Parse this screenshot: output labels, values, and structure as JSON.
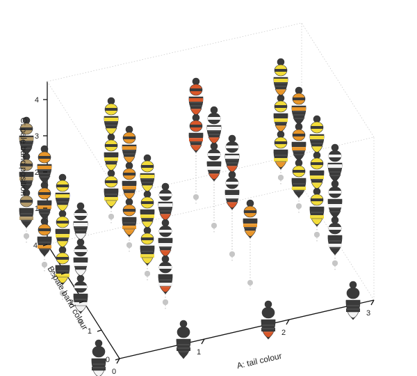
{
  "chart_data": {
    "type": "scatter3d",
    "title": "",
    "axes": {
      "x": {
        "label": "A: tail colour",
        "ticks": [
          "0",
          "1",
          "2",
          "3"
        ],
        "range": [
          0,
          3
        ]
      },
      "y": {
        "label": "B: pale band colour",
        "ticks": [
          "0",
          "1",
          "2",
          "3",
          "4"
        ],
        "range": [
          0,
          4
        ]
      },
      "z": {
        "label": "C: pale band position",
        "ticks": [
          "1",
          "2",
          "3",
          "4"
        ],
        "range": [
          0,
          4
        ]
      }
    },
    "grid": false,
    "colors": {
      "dark": "#3a3a3a",
      "white": "#f2f2f2",
      "yellow": "#f2dc3a",
      "orange": "#e8962a",
      "red": "#d9582a",
      "tan": "#b39a6a",
      "marker": "#c6c6c6"
    },
    "points": [
      {
        "a": 0,
        "b": 0,
        "c": 0,
        "band": "dark",
        "tail": "white"
      },
      {
        "a": 1,
        "b": 0,
        "c": 0,
        "band": "dark",
        "tail": "dark"
      },
      {
        "a": 2,
        "b": 0,
        "c": 0,
        "band": "dark",
        "tail": "red"
      },
      {
        "a": 3,
        "b": 0,
        "c": 0,
        "band": "dark",
        "tail": "white"
      },
      {
        "a": 0,
        "b": 1,
        "c": 1,
        "band": "white",
        "tail": "white"
      },
      {
        "a": 0,
        "b": 1,
        "c": 2,
        "band": "white",
        "tail": "white"
      },
      {
        "a": 0,
        "b": 1,
        "c": 3,
        "band": "white",
        "tail": "white"
      },
      {
        "a": 0,
        "b": 2,
        "c": 1,
        "band": "yellow",
        "tail": "yellow"
      },
      {
        "a": 0,
        "b": 2,
        "c": 2,
        "band": "yellow",
        "tail": "yellow"
      },
      {
        "a": 0,
        "b": 2,
        "c": 3,
        "band": "yellow",
        "tail": "yellow"
      },
      {
        "a": 0,
        "b": 3,
        "c": 1,
        "band": "orange",
        "tail": "dark"
      },
      {
        "a": 0,
        "b": 3,
        "c": 2,
        "band": "orange",
        "tail": "dark"
      },
      {
        "a": 0,
        "b": 3,
        "c": 3,
        "band": "orange",
        "tail": "dark"
      },
      {
        "a": 0,
        "b": 4,
        "c": 1,
        "band": "tan",
        "tail": "dark"
      },
      {
        "a": 0,
        "b": 4,
        "c": 2,
        "band": "tan",
        "tail": "dark"
      },
      {
        "a": 0,
        "b": 4,
        "c": 3,
        "band": "tan",
        "tail": "dark"
      },
      {
        "a": 1,
        "b": 1,
        "c": 1,
        "band": "white",
        "tail": "red"
      },
      {
        "a": 1,
        "b": 1,
        "c": 2,
        "band": "white",
        "tail": "red"
      },
      {
        "a": 1,
        "b": 1,
        "c": 3,
        "band": "white",
        "tail": "red"
      },
      {
        "a": 1,
        "b": 2,
        "c": 1,
        "band": "yellow",
        "tail": "yellow"
      },
      {
        "a": 1,
        "b": 2,
        "c": 2,
        "band": "yellow",
        "tail": "yellow"
      },
      {
        "a": 1,
        "b": 2,
        "c": 3,
        "band": "yellow",
        "tail": "yellow"
      },
      {
        "a": 1,
        "b": 3,
        "c": 1,
        "band": "orange",
        "tail": "orange"
      },
      {
        "a": 1,
        "b": 3,
        "c": 2,
        "band": "orange",
        "tail": "orange"
      },
      {
        "a": 1,
        "b": 3,
        "c": 3,
        "band": "orange",
        "tail": "orange"
      },
      {
        "a": 1,
        "b": 4,
        "c": 1,
        "band": "yellow",
        "tail": "yellow"
      },
      {
        "a": 1,
        "b": 4,
        "c": 2,
        "band": "yellow",
        "tail": "yellow"
      },
      {
        "a": 1,
        "b": 4,
        "c": 3,
        "band": "yellow",
        "tail": "yellow"
      },
      {
        "a": 2,
        "b": 2,
        "c": 2,
        "band": "white",
        "tail": "red"
      },
      {
        "a": 2,
        "b": 2,
        "c": 3,
        "band": "white",
        "tail": "red"
      },
      {
        "a": 2,
        "b": 3,
        "c": 2,
        "band": "white",
        "tail": "red"
      },
      {
        "a": 2,
        "b": 3,
        "c": 3,
        "band": "white",
        "tail": "red"
      },
      {
        "a": 2,
        "b": 4,
        "c": 2,
        "band": "red",
        "tail": "red"
      },
      {
        "a": 2,
        "b": 4,
        "c": 3,
        "band": "red",
        "tail": "red"
      },
      {
        "a": 2,
        "b": 1,
        "c": 2,
        "band": "orange",
        "tail": "orange"
      },
      {
        "a": 3,
        "b": 1,
        "c": 1,
        "band": "white",
        "tail": "dark"
      },
      {
        "a": 3,
        "b": 1,
        "c": 2,
        "band": "white",
        "tail": "dark"
      },
      {
        "a": 3,
        "b": 1,
        "c": 3,
        "band": "white",
        "tail": "dark"
      },
      {
        "a": 3,
        "b": 2,
        "c": 1,
        "band": "yellow",
        "tail": "yellow"
      },
      {
        "a": 3,
        "b": 2,
        "c": 2,
        "band": "yellow",
        "tail": "yellow"
      },
      {
        "a": 3,
        "b": 2,
        "c": 3,
        "band": "yellow",
        "tail": "yellow"
      },
      {
        "a": 3,
        "b": 3,
        "c": 1,
        "band": "yellow",
        "tail": "dark"
      },
      {
        "a": 3,
        "b": 3,
        "c": 2,
        "band": "orange",
        "tail": "dark"
      },
      {
        "a": 3,
        "b": 3,
        "c": 3,
        "band": "orange",
        "tail": "dark"
      },
      {
        "a": 3,
        "b": 4,
        "c": 1,
        "band": "yellow",
        "tail": "orange"
      },
      {
        "a": 3,
        "b": 4,
        "c": 2,
        "band": "yellow",
        "tail": "orange"
      },
      {
        "a": 3,
        "b": 4,
        "c": 3,
        "band": "yellow",
        "tail": "orange"
      }
    ]
  }
}
